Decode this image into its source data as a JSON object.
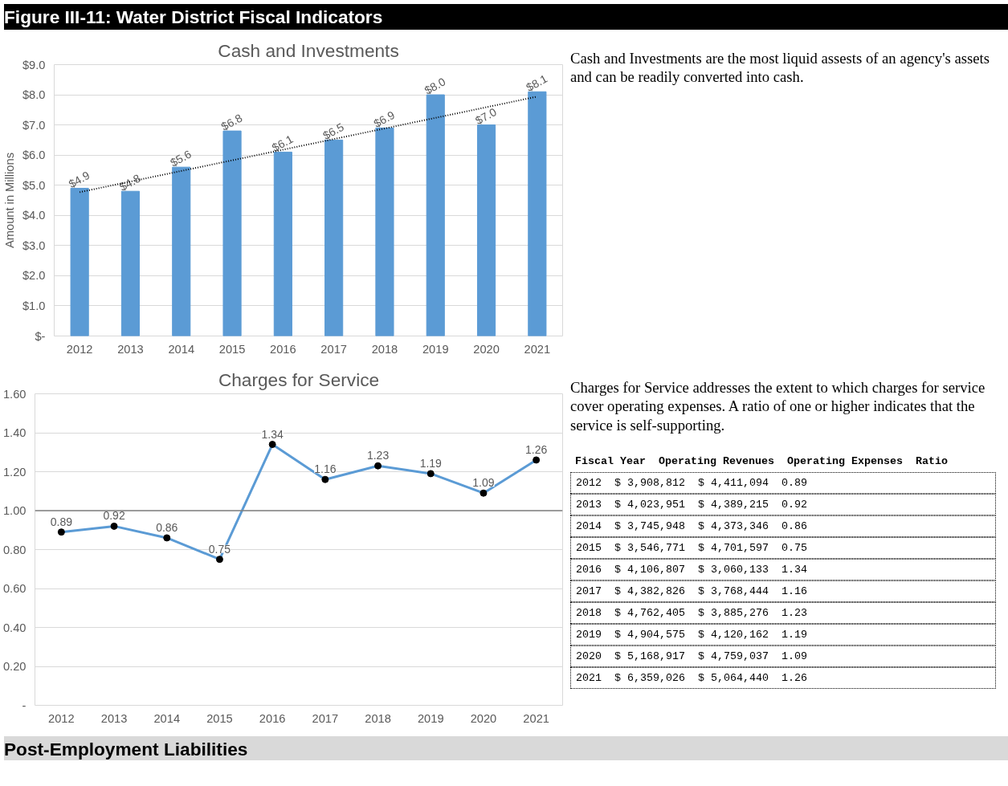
{
  "chart_data": [
    {
      "type": "other",
      "title": "Figure III-11: Water District Fiscal Indicators"
    },
    {
      "type": "bar",
      "title": "Cash and Investments",
      "ylabel": "Amount in Millions",
      "x": [
        2012,
        2013,
        2014,
        2015,
        2016,
        2017,
        2018,
        2019,
        2020,
        2021
      ],
      "xlim": [
        2011.5,
        2021.5
      ],
      "xticks": [
        2012,
        2013,
        2014,
        2015,
        2016,
        2017,
        2018,
        2019,
        2020,
        2021
      ],
      "ylim": [
        0,
        9
      ],
      "yticks": [
        {
          "value": 0,
          "label": "$-"
        },
        {
          "value": 1,
          "label": "$1.0"
        },
        {
          "value": 2,
          "label": "$2.0"
        },
        {
          "value": 3,
          "label": "$3.0"
        },
        {
          "value": 4,
          "label": "$4.0"
        },
        {
          "value": 5,
          "label": "$5.0"
        },
        {
          "value": 6,
          "label": "$6.0"
        },
        {
          "value": 7,
          "label": "$7.0"
        },
        {
          "value": 8,
          "label": "$8.0"
        },
        {
          "value": 9,
          "label": "$9.0"
        }
      ],
      "series": [
        {
          "type": "bar",
          "color": "#5b9bd5",
          "values": [
            4.9,
            4.8,
            5.6,
            6.8,
            6.1,
            6.5,
            6.9,
            8.0,
            7.0,
            8.1
          ],
          "value_labels": [
            "$4.9",
            "$4.8",
            "$5.6",
            "$6.8",
            "$6.1",
            "$6.5",
            "$6.9",
            "$8.0",
            "$7.0",
            "$8.1"
          ]
        },
        {
          "type": "line",
          "color": "#000000",
          "line_style": "dotted",
          "x": [
            2012,
            2021
          ],
          "values": [
            4.77,
            7.94
          ]
        }
      ],
      "grid": "y"
    },
    {
      "type": "other",
      "annotations": [
        "Cash and Investments are the most liquid assests of an agency's assets and can be readily converted into cash."
      ]
    },
    {
      "type": "line",
      "title": "Charges for Service",
      "x": [
        2012,
        2013,
        2014,
        2015,
        2016,
        2017,
        2018,
        2019,
        2020,
        2021
      ],
      "xlim": [
        2011.5,
        2021.5
      ],
      "xticks": [
        2012,
        2013,
        2014,
        2015,
        2016,
        2017,
        2018,
        2019,
        2020,
        2021
      ],
      "ylim": [
        0,
        1.6
      ],
      "yticks": [
        {
          "value": 0,
          "label": "-"
        },
        {
          "value": 0.2,
          "label": "0.20"
        },
        {
          "value": 0.4,
          "label": "0.40"
        },
        {
          "value": 0.6,
          "label": "0.60"
        },
        {
          "value": 0.8,
          "label": "0.80"
        },
        {
          "value": 1.0,
          "label": "1.00"
        },
        {
          "value": 1.2,
          "label": "1.20"
        },
        {
          "value": 1.4,
          "label": "1.40"
        },
        {
          "value": 1.6,
          "label": "1.60"
        }
      ],
      "series": [
        {
          "color": "#5b9bd5",
          "values": [
            0.89,
            0.92,
            0.86,
            0.75,
            1.34,
            1.16,
            1.23,
            1.19,
            1.09,
            1.26
          ]
        }
      ],
      "marker": "circle",
      "data_labels": true,
      "grid": "y",
      "ref_lines": [
        {
          "axis": "y",
          "value": 1.0,
          "color": "#808080"
        }
      ]
    },
    {
      "type": "other",
      "annotations": [
        "Charges for Service addresses the extent to which charges for service cover operating expenses. A ratio of one or higher indicates that the service is self-supporting.",
        "Fiscal Year  Operating Revenues  Operating Expenses  Ratio",
        "2012  $ 3,908,812  $ 4,411,094  0.89",
        "2013  $ 4,023,951  $ 4,389,215  0.92",
        "2014  $ 3,745,948  $ 4,373,346  0.86",
        "2015  $ 3,546,771  $ 4,701,597  0.75",
        "2016  $ 4,106,807  $ 3,060,133  1.34",
        "2017  $ 4,382,826  $ 3,768,444  1.16",
        "2018  $ 4,762,405  $ 3,885,276  1.23",
        "2019  $ 4,904,575  $ 4,120,162  1.19",
        "2020  $ 5,168,917  $ 4,759,037  1.09",
        "2021  $ 6,359,026  $ 5,064,440  1.26"
      ]
    },
    {
      "type": "other",
      "title": "Post-Employment Liabilities"
    }
  ]
}
